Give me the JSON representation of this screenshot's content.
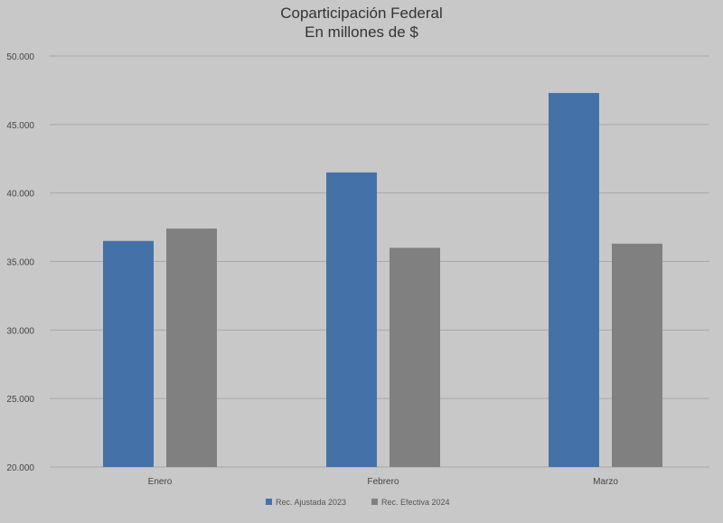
{
  "chart_data": {
    "type": "bar",
    "title": "Coparticipación Federal",
    "subtitle": "En millones de $",
    "categories": [
      "Enero",
      "Febrero",
      "Marzo"
    ],
    "series": [
      {
        "name": "Rec. Ajustada 2023",
        "color": "#4472a8",
        "values": [
          36500,
          41500,
          47300
        ]
      },
      {
        "name": "Rec. Efectiva 2024",
        "color": "#808080",
        "values": [
          37400,
          36000,
          36300
        ]
      }
    ],
    "ylim": [
      20000,
      50000
    ],
    "yticks": [
      "20.000",
      "25.000",
      "30.000",
      "35.000",
      "40.000",
      "45.000",
      "50.000"
    ],
    "ytick_values": [
      20000,
      25000,
      30000,
      35000,
      40000,
      45000,
      50000
    ],
    "grid": true,
    "legend_position": "bottom"
  }
}
